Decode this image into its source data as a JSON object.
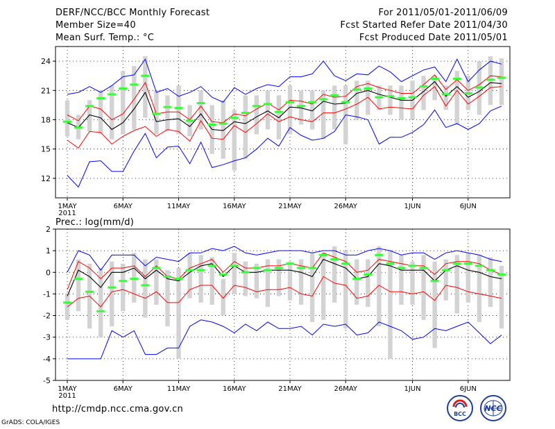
{
  "header": {
    "title": "DERF/NCC/BCC Monthly Forecast",
    "member_size": "Member Size=40",
    "variable": "Mean Surf. Temp.: °C",
    "period": "For 2011/05/01-2011/06/09",
    "started": "Fcst Started Refer Date 2011/04/30",
    "produced": "Fcst Produced Date 2011/05/01"
  },
  "footer": {
    "url": "http://cmdp.ncc.cma.gov.cn",
    "grads": "GrADS: COLA/IGES",
    "logo_left": "BCC",
    "logo_right": "NCC"
  },
  "colors": {
    "bar": "#d3d3d3",
    "median": "#33ff33",
    "mean": "#000000",
    "sd": "#ff0000",
    "envelope": "#0000ff",
    "frame": "#000000"
  },
  "chart_data": [
    {
      "type": "boxplot",
      "title": "Mean Surf. Temp.: °C",
      "xlabel": "",
      "ylabel": "°C",
      "ylim": [
        10,
        25.5
      ],
      "yticks": [
        12,
        15,
        18,
        21,
        24
      ],
      "x_ticks": [
        {
          "day": 1,
          "label": "1MAY",
          "year": "2011"
        },
        {
          "day": 6,
          "label": "6MAY"
        },
        {
          "day": 11,
          "label": "11MAY"
        },
        {
          "day": 16,
          "label": "16MAY"
        },
        {
          "day": 21,
          "label": "21MAY"
        },
        {
          "day": 26,
          "label": "26MAY"
        },
        {
          "day": 32,
          "label": "1JUN"
        },
        {
          "day": 37,
          "label": "6JUN"
        }
      ],
      "days": [
        1,
        2,
        3,
        4,
        5,
        6,
        7,
        8,
        9,
        10,
        11,
        12,
        13,
        14,
        15,
        16,
        17,
        18,
        19,
        20,
        21,
        22,
        23,
        24,
        25,
        26,
        27,
        28,
        29,
        30,
        31,
        32,
        33,
        34,
        35,
        36,
        37,
        38,
        39,
        40
      ],
      "bar_low": [
        16.3,
        16.0,
        16.8,
        16.5,
        16.0,
        16.5,
        17.0,
        18.2,
        16.5,
        16.8,
        16.5,
        16.3,
        17.0,
        14.5,
        14.0,
        12.8,
        14.0,
        16.5,
        17.0,
        16.0,
        16.5,
        17.5,
        17.0,
        16.0,
        17.0,
        15.5,
        18.0,
        18.5,
        19.0,
        18.5,
        18.0,
        18.0,
        19.0,
        20.0,
        19.0,
        17.5,
        19.0,
        18.5,
        19.5,
        19.5
      ],
      "bar_high": [
        20.0,
        18.5,
        20.0,
        21.0,
        21.5,
        23.0,
        23.5,
        24.5,
        21.0,
        20.5,
        21.5,
        19.5,
        21.0,
        19.5,
        20.0,
        19.0,
        20.5,
        20.5,
        21.0,
        20.5,
        21.5,
        21.0,
        21.0,
        21.0,
        21.5,
        21.5,
        22.0,
        22.0,
        21.5,
        21.5,
        21.5,
        22.0,
        22.5,
        22.5,
        21.5,
        23.0,
        22.5,
        24.0,
        24.5,
        24.3
      ],
      "median": [
        17.8,
        17.2,
        19.4,
        20.2,
        20.6,
        21.2,
        21.6,
        22.5,
        18.6,
        19.3,
        19.2,
        17.9,
        19.7,
        17.5,
        17.6,
        18.2,
        18.7,
        19.4,
        19.6,
        18.8,
        19.8,
        19.4,
        19.8,
        20.1,
        20.5,
        19.8,
        21.1,
        21.2,
        20.3,
        20.4,
        20.2,
        20.3,
        21.4,
        22.2,
        20.6,
        22.2,
        20.7,
        21.3,
        22.1,
        22.3
      ],
      "mean": [
        17.7,
        17.2,
        18.5,
        18.2,
        17.0,
        17.7,
        19.1,
        20.8,
        17.8,
        18.0,
        18.1,
        17.3,
        18.6,
        17.0,
        16.9,
        17.8,
        17.6,
        18.3,
        18.9,
        18.2,
        19.3,
        19.2,
        18.9,
        19.9,
        19.6,
        19.7,
        20.7,
        21.0,
        20.6,
        20.3,
        20.0,
        20.0,
        20.9,
        21.9,
        20.4,
        21.4,
        20.3,
        20.9,
        21.8,
        21.7
      ],
      "mean_plus_sd": [
        18.5,
        17.9,
        19.4,
        19.1,
        18.0,
        18.6,
        20.1,
        21.8,
        18.6,
        18.8,
        18.8,
        18.0,
        19.4,
        17.8,
        17.7,
        18.6,
        18.4,
        19.1,
        19.7,
        19.0,
        20.0,
        19.9,
        19.6,
        20.6,
        20.3,
        20.4,
        21.4,
        21.7,
        21.3,
        21.0,
        20.7,
        20.7,
        21.6,
        22.6,
        21.1,
        22.1,
        21.0,
        21.6,
        22.5,
        22.4
      ],
      "mean_minus_sd": [
        15.9,
        15.1,
        16.8,
        16.7,
        15.5,
        16.3,
        16.9,
        17.3,
        16.3,
        17.0,
        16.8,
        15.8,
        17.9,
        16.1,
        16.0,
        17.4,
        16.7,
        17.6,
        18.6,
        17.8,
        18.3,
        18.0,
        17.8,
        18.7,
        18.7,
        19.1,
        19.6,
        20.3,
        19.1,
        19.3,
        19.2,
        19.1,
        20.5,
        21.4,
        19.4,
        21.0,
        19.6,
        20.4,
        21.3,
        21.4
      ],
      "max": [
        20.6,
        20.8,
        21.4,
        20.8,
        21.5,
        22.4,
        22.6,
        24.2,
        20.8,
        21.2,
        20.4,
        20.8,
        21.4,
        20.3,
        19.8,
        21.3,
        20.6,
        21.2,
        21.6,
        21.4,
        22.4,
        22.4,
        22.7,
        24.0,
        22.5,
        22.0,
        22.7,
        22.6,
        23.5,
        22.9,
        21.9,
        22.5,
        23.1,
        23.4,
        21.9,
        24.2,
        21.9,
        23.1,
        24.0,
        23.7
      ],
      "min": [
        12.3,
        11.1,
        13.7,
        13.8,
        12.7,
        12.7,
        14.8,
        16.6,
        14.1,
        15.2,
        15.3,
        13.5,
        15.7,
        13.1,
        13.4,
        13.8,
        14.1,
        15.0,
        16.1,
        15.3,
        17.2,
        16.4,
        15.9,
        16.1,
        16.8,
        18.5,
        18.3,
        18.0,
        15.5,
        16.2,
        16.2,
        16.7,
        17.5,
        19.0,
        17.2,
        17.6,
        17.0,
        17.6,
        18.9,
        19.4
      ]
    },
    {
      "type": "boxplot",
      "title": "Prec.: log(mm/d)",
      "xlabel": "",
      "ylabel": "log(mm/d)",
      "ylim": [
        -5,
        2
      ],
      "yticks": [
        -5,
        -4,
        -3,
        -2,
        -1,
        0,
        1,
        2
      ],
      "x_ticks": [
        {
          "day": 1,
          "label": "1MAY",
          "year": "2011"
        },
        {
          "day": 6,
          "label": "6MAY"
        },
        {
          "day": 11,
          "label": "11MAY"
        },
        {
          "day": 16,
          "label": "16MAY"
        },
        {
          "day": 21,
          "label": "21MAY"
        },
        {
          "day": 26,
          "label": "26MAY"
        },
        {
          "day": 32,
          "label": "1JUN"
        },
        {
          "day": 37,
          "label": "6JUN"
        }
      ],
      "days": [
        1,
        2,
        3,
        4,
        5,
        6,
        7,
        8,
        9,
        10,
        11,
        12,
        13,
        14,
        15,
        16,
        17,
        18,
        19,
        20,
        21,
        22,
        23,
        24,
        25,
        26,
        27,
        28,
        29,
        30,
        31,
        32,
        33,
        34,
        35,
        36,
        37,
        38,
        39,
        40
      ],
      "bar_low": [
        -2.2,
        -1.8,
        -2.6,
        -3.0,
        -2.5,
        -1.8,
        -1.4,
        -2.1,
        -1.5,
        -2.5,
        -4.0,
        -1.2,
        -1.4,
        -1.5,
        -2.0,
        -1.0,
        -1.1,
        -1.2,
        -1.6,
        -1.1,
        -1.3,
        -1.5,
        -2.3,
        -2.2,
        -1.4,
        -2.6,
        -1.5,
        -1.6,
        -2.5,
        -4.0,
        -1.5,
        -1.5,
        -2.2,
        -3.5,
        -1.3,
        -1.9,
        -1.4,
        -2.3,
        -1.6,
        -2.6
      ],
      "bar_high": [
        -1.0,
        0.6,
        0.4,
        0.2,
        0.5,
        0.4,
        0.9,
        0.6,
        0.6,
        0.1,
        0.2,
        0.9,
        0.8,
        0.7,
        -0.3,
        0.9,
        0.5,
        0.4,
        0.6,
        0.6,
        0.5,
        0.6,
        0.9,
        0.9,
        1.2,
        1.0,
        0.6,
        0.6,
        1.2,
        1.0,
        0.8,
        0.5,
        0.8,
        0.5,
        0.6,
        0.8,
        0.9,
        0.8,
        0.7,
        0.3
      ],
      "median": [
        -1.4,
        -0.3,
        -0.9,
        -1.8,
        -0.7,
        -0.4,
        -0.3,
        -0.6,
        0.2,
        -0.2,
        -0.3,
        0.1,
        0.1,
        0.3,
        -0.1,
        0.3,
        0.0,
        0.2,
        0.1,
        0.2,
        0.4,
        0.2,
        0.2,
        0.8,
        0.6,
        0.4,
        -0.3,
        -0.1,
        0.8,
        0.4,
        0.2,
        0.3,
        0.2,
        -0.4,
        0.1,
        0.4,
        0.4,
        0.3,
        0.1,
        -0.1
      ],
      "mean": [
        -1.1,
        0.1,
        -0.2,
        -0.7,
        0.0,
        0.0,
        0.2,
        -0.3,
        0.1,
        -0.3,
        -0.4,
        0.0,
        0.3,
        0.4,
        -0.2,
        0.3,
        0.0,
        0.0,
        0.1,
        0.1,
        0.1,
        0.0,
        -0.2,
        0.6,
        0.4,
        0.2,
        -0.3,
        -0.2,
        0.4,
        0.3,
        0.1,
        0.1,
        0.1,
        -0.4,
        0.1,
        0.3,
        0.1,
        0.0,
        -0.2,
        -0.3
      ],
      "mean_plus_sd": [
        -0.8,
        0.5,
        0.2,
        -0.3,
        0.2,
        0.2,
        0.3,
        -0.2,
        0.3,
        -0.2,
        -0.3,
        0.2,
        0.4,
        0.6,
        0.0,
        0.5,
        0.2,
        0.2,
        0.3,
        0.3,
        0.4,
        0.3,
        0.2,
        0.9,
        0.7,
        0.5,
        0.0,
        0.1,
        0.6,
        0.5,
        0.4,
        0.3,
        0.3,
        -0.1,
        0.4,
        0.5,
        0.5,
        0.4,
        0.1,
        -0.1
      ],
      "mean_minus_sd": [
        -1.6,
        -1.2,
        -1.1,
        -1.6,
        -0.9,
        -0.8,
        -1.0,
        -1.2,
        -0.9,
        -1.4,
        -1.4,
        -0.8,
        -0.6,
        -0.6,
        -1.2,
        -0.6,
        -0.7,
        -0.9,
        -0.8,
        -0.8,
        -0.7,
        -1.0,
        -1.1,
        -0.2,
        -0.5,
        -0.6,
        -1.2,
        -1.1,
        -0.6,
        -0.9,
        -0.9,
        -1.0,
        -0.9,
        -1.3,
        -0.6,
        -0.7,
        -0.9,
        -1.0,
        -1.1,
        -1.2
      ],
      "max": [
        0.0,
        1.0,
        0.8,
        0.1,
        0.8,
        0.8,
        0.8,
        0.3,
        0.7,
        0.6,
        0.5,
        0.9,
        0.9,
        1.1,
        1.0,
        1.2,
        0.9,
        0.8,
        0.9,
        1.0,
        1.0,
        1.0,
        0.9,
        1.0,
        1.0,
        0.8,
        0.8,
        1.0,
        1.1,
        1.0,
        0.8,
        0.9,
        0.9,
        0.6,
        0.9,
        1.0,
        0.9,
        0.8,
        0.6,
        0.5
      ],
      "min": [
        -4.0,
        -4.0,
        -4.0,
        -4.0,
        -2.7,
        -3.0,
        -2.7,
        -3.8,
        -3.8,
        -3.5,
        -3.5,
        -2.5,
        -2.2,
        -2.3,
        -2.5,
        -2.8,
        -2.4,
        -2.7,
        -2.3,
        -2.6,
        -2.6,
        -2.5,
        -2.9,
        -2.4,
        -2.5,
        -2.4,
        -2.9,
        -2.8,
        -2.3,
        -2.5,
        -2.7,
        -3.1,
        -3.0,
        -2.6,
        -2.7,
        -2.5,
        -2.3,
        -2.8,
        -3.3,
        -2.9
      ]
    }
  ]
}
